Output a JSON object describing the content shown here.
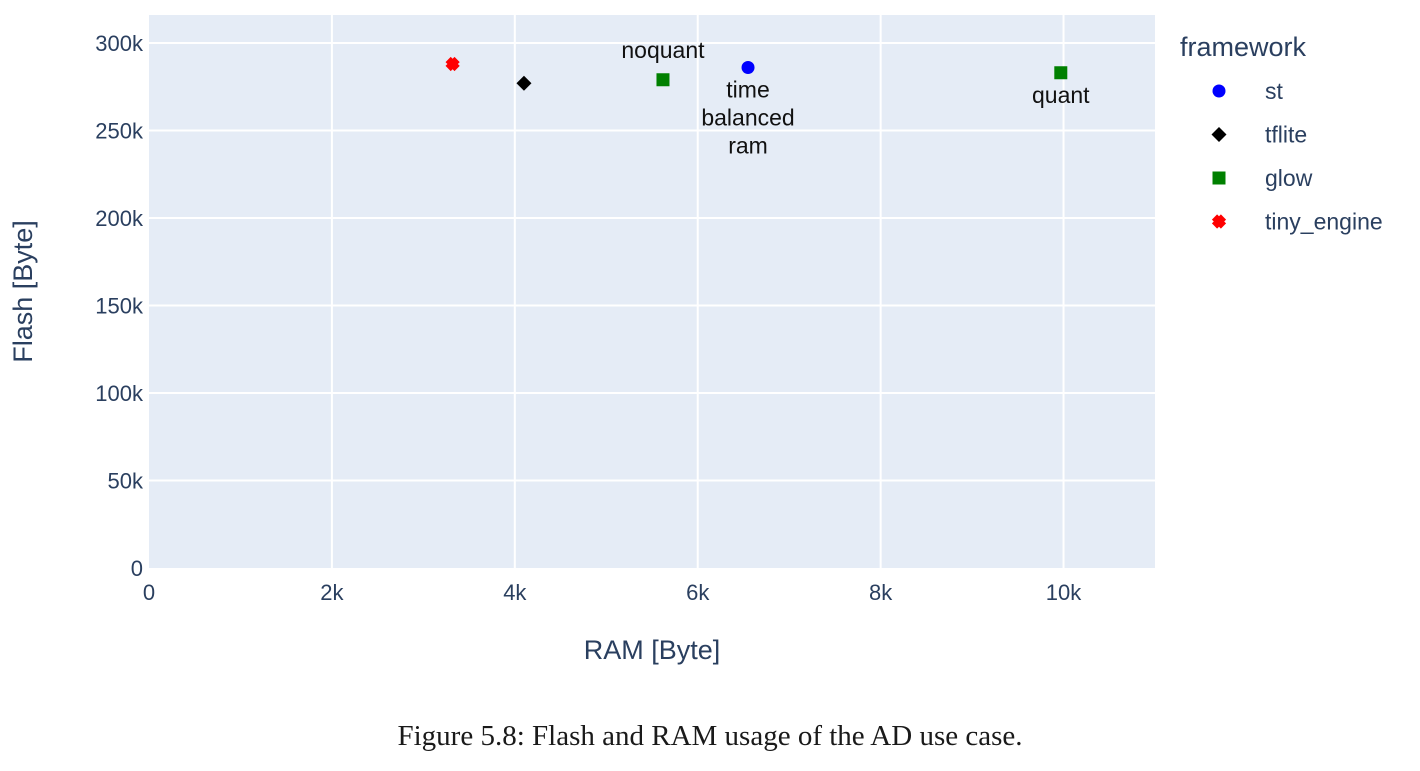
{
  "chart_data": {
    "type": "scatter",
    "title": "",
    "xlabel": "RAM [Byte]",
    "ylabel": "Flash [Byte]",
    "xlim": [
      0,
      11000
    ],
    "ylim": [
      0,
      316000
    ],
    "x_ticks": [
      {
        "value": 0,
        "label": "0"
      },
      {
        "value": 2000,
        "label": "2k"
      },
      {
        "value": 4000,
        "label": "4k"
      },
      {
        "value": 6000,
        "label": "6k"
      },
      {
        "value": 8000,
        "label": "8k"
      },
      {
        "value": 10000,
        "label": "10k"
      }
    ],
    "y_ticks": [
      {
        "value": 0,
        "label": "0"
      },
      {
        "value": 50000,
        "label": "50k"
      },
      {
        "value": 100000,
        "label": "100k"
      },
      {
        "value": 150000,
        "label": "150k"
      },
      {
        "value": 200000,
        "label": "200k"
      },
      {
        "value": 250000,
        "label": "250k"
      },
      {
        "value": 300000,
        "label": "300k"
      }
    ],
    "grid": true,
    "legend_title": "framework",
    "legend_position": "right",
    "series": [
      {
        "name": "st",
        "symbol": "circle",
        "color": "#0000ff",
        "points": [
          {
            "x": 6550,
            "y": 286000,
            "label": "time\nbalanced\nram",
            "label_position": "bottom"
          }
        ]
      },
      {
        "name": "tflite",
        "symbol": "diamond",
        "color": "#000000",
        "points": [
          {
            "x": 4100,
            "y": 277000,
            "label": "",
            "label_position": "none"
          }
        ]
      },
      {
        "name": "glow",
        "symbol": "square",
        "color": "#008000",
        "points": [
          {
            "x": 5620,
            "y": 279000,
            "label": "noquant",
            "label_position": "top"
          },
          {
            "x": 9970,
            "y": 283000,
            "label": "quant",
            "label_position": "bottom"
          }
        ]
      },
      {
        "name": "tiny_engine",
        "symbol": "x",
        "color": "#ff0000",
        "points": [
          {
            "x": 3320,
            "y": 288000,
            "label": "",
            "label_position": "none"
          }
        ]
      }
    ]
  },
  "caption": "Figure 5.8: Flash and RAM usage of the AD use case.",
  "colors": {
    "plot_background": "#e5ecf6",
    "grid": "#ffffff",
    "axis_text": "#2a3f5f"
  }
}
